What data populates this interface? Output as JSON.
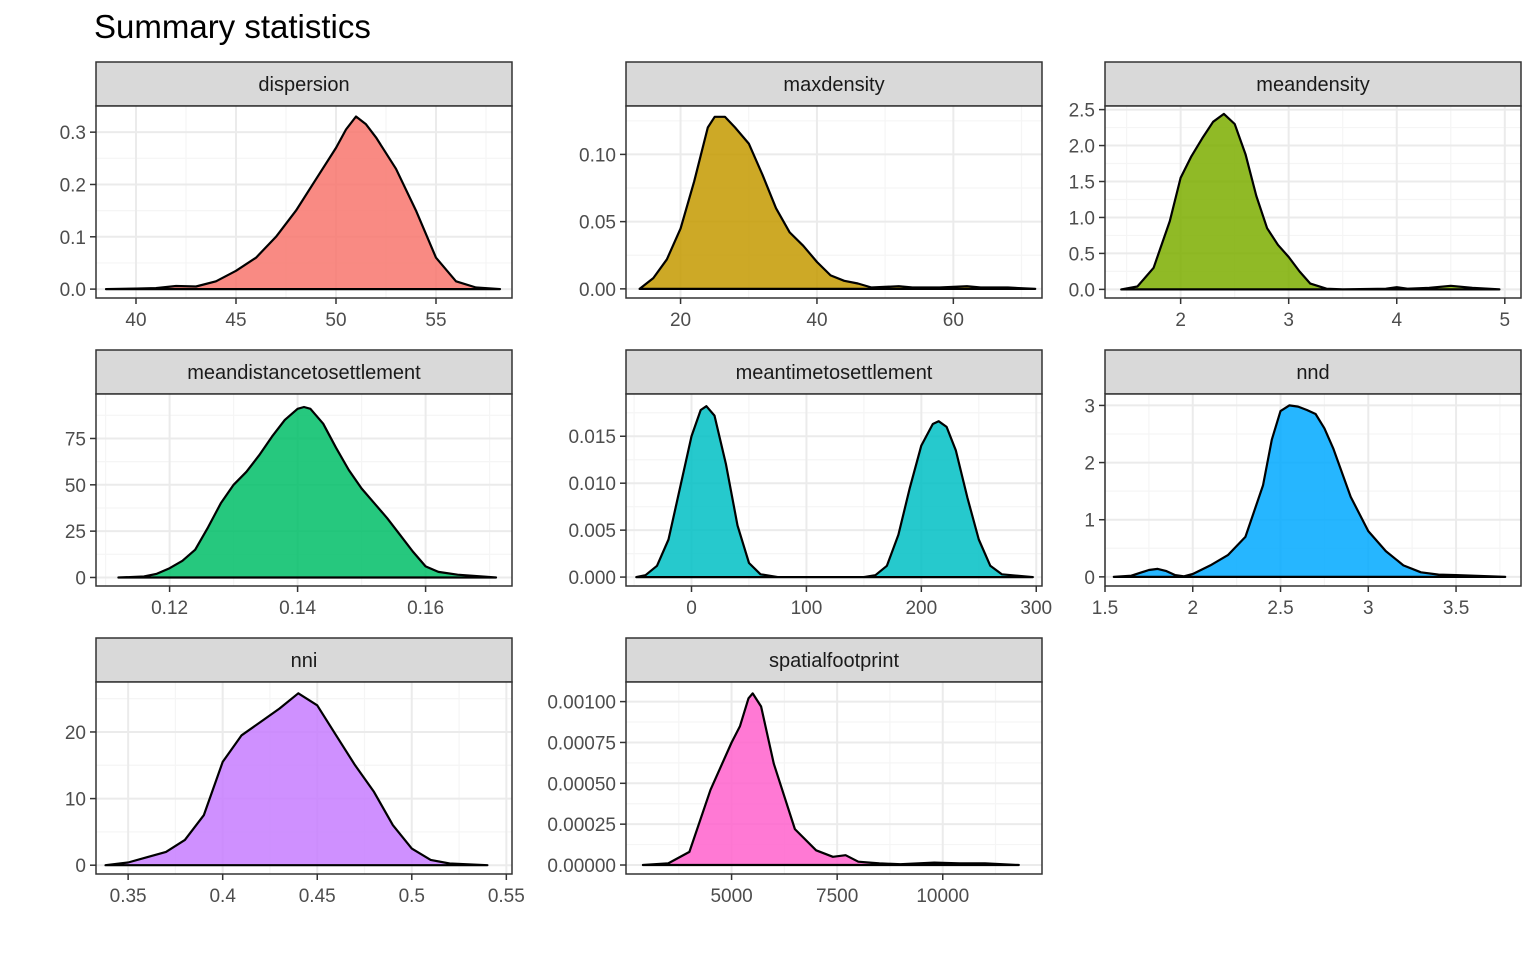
{
  "title": "Summary statistics",
  "colors": {
    "strip_fill": "#d9d9d9",
    "panel_border": "#333333",
    "grid_major": "#ebebeb",
    "grid_minor": "#f5f5f5",
    "axis_text": "#4d4d4d",
    "curve": "#000000"
  },
  "chart_data": [
    {
      "type": "area",
      "facet": "dispersion",
      "fill": "#F8766D",
      "xlim": [
        38,
        58.8
      ],
      "ylim": [
        -0.017,
        0.35
      ],
      "xticks": [
        40,
        45,
        50,
        55
      ],
      "yticks": [
        0,
        0.1,
        0.2,
        0.3
      ],
      "ytick_labels": [
        "0.0",
        "0.1",
        "0.2",
        "0.3"
      ],
      "points": [
        [
          38.5,
          0
        ],
        [
          40,
          0.001
        ],
        [
          41,
          0.002
        ],
        [
          42,
          0.006
        ],
        [
          43,
          0.005
        ],
        [
          44,
          0.015
        ],
        [
          45,
          0.035
        ],
        [
          46,
          0.06
        ],
        [
          47,
          0.1
        ],
        [
          48,
          0.15
        ],
        [
          49,
          0.21
        ],
        [
          50,
          0.27
        ],
        [
          50.5,
          0.305
        ],
        [
          51,
          0.33
        ],
        [
          51.5,
          0.315
        ],
        [
          52,
          0.29
        ],
        [
          53,
          0.23
        ],
        [
          54,
          0.15
        ],
        [
          55,
          0.06
        ],
        [
          56,
          0.015
        ],
        [
          57,
          0.003
        ],
        [
          58.2,
          0
        ]
      ]
    },
    {
      "type": "area",
      "facet": "maxdensity",
      "fill": "#C49A00",
      "xlim": [
        12,
        73
      ],
      "ylim": [
        -0.0068,
        0.136
      ],
      "xticks": [
        20,
        40,
        60
      ],
      "yticks": [
        0,
        0.05,
        0.1
      ],
      "ytick_labels": [
        "0.00",
        "0.05",
        "0.10"
      ],
      "points": [
        [
          14,
          0
        ],
        [
          16,
          0.008
        ],
        [
          18,
          0.022
        ],
        [
          20,
          0.045
        ],
        [
          22,
          0.08
        ],
        [
          24,
          0.12
        ],
        [
          25,
          0.128
        ],
        [
          26.5,
          0.128
        ],
        [
          28,
          0.12
        ],
        [
          30,
          0.108
        ],
        [
          32,
          0.085
        ],
        [
          34,
          0.06
        ],
        [
          36,
          0.042
        ],
        [
          38,
          0.032
        ],
        [
          40,
          0.02
        ],
        [
          42,
          0.01
        ],
        [
          44,
          0.006
        ],
        [
          46,
          0.004
        ],
        [
          48,
          0.001
        ],
        [
          52,
          0.002
        ],
        [
          54,
          0.001
        ],
        [
          58,
          0.001
        ],
        [
          62,
          0.002
        ],
        [
          64,
          0.001
        ],
        [
          68,
          0.001
        ],
        [
          72,
          0
        ]
      ]
    },
    {
      "type": "area",
      "facet": "meandensity",
      "fill": "#7CAE00",
      "xlim": [
        1.3,
        5.15
      ],
      "ylim": [
        -0.12,
        2.55
      ],
      "xticks": [
        2,
        3,
        4,
        5
      ],
      "yticks": [
        0,
        0.5,
        1,
        1.5,
        2,
        2.5
      ],
      "ytick_labels": [
        "0.0",
        "0.5",
        "1.0",
        "1.5",
        "2.0",
        "2.5"
      ],
      "points": [
        [
          1.45,
          0
        ],
        [
          1.6,
          0.04
        ],
        [
          1.75,
          0.3
        ],
        [
          1.9,
          0.95
        ],
        [
          2.0,
          1.55
        ],
        [
          2.1,
          1.85
        ],
        [
          2.2,
          2.1
        ],
        [
          2.3,
          2.33
        ],
        [
          2.4,
          2.44
        ],
        [
          2.5,
          2.3
        ],
        [
          2.6,
          1.88
        ],
        [
          2.7,
          1.3
        ],
        [
          2.8,
          0.85
        ],
        [
          2.9,
          0.62
        ],
        [
          3.0,
          0.45
        ],
        [
          3.1,
          0.25
        ],
        [
          3.2,
          0.08
        ],
        [
          3.35,
          0.01
        ],
        [
          3.5,
          0
        ],
        [
          3.9,
          0.01
        ],
        [
          4.0,
          0.03
        ],
        [
          4.1,
          0.01
        ],
        [
          4.3,
          0.02
        ],
        [
          4.5,
          0.05
        ],
        [
          4.7,
          0.02
        ],
        [
          4.95,
          0
        ]
      ]
    },
    {
      "type": "area",
      "facet": "meandistancetosettlement",
      "fill": "#00BE67",
      "xlim": [
        0.1085,
        0.1735
      ],
      "ylim": [
        -4.6,
        99
      ],
      "xticks": [
        0.12,
        0.14,
        0.16
      ],
      "yticks": [
        0,
        25,
        50,
        75
      ],
      "ytick_labels": [
        "0",
        "25",
        "50",
        "75"
      ],
      "points": [
        [
          0.112,
          0
        ],
        [
          0.116,
          0.5
        ],
        [
          0.118,
          2
        ],
        [
          0.12,
          5
        ],
        [
          0.122,
          9
        ],
        [
          0.124,
          15
        ],
        [
          0.126,
          27
        ],
        [
          0.128,
          40
        ],
        [
          0.13,
          50
        ],
        [
          0.132,
          57
        ],
        [
          0.134,
          66
        ],
        [
          0.136,
          76
        ],
        [
          0.138,
          85
        ],
        [
          0.14,
          91
        ],
        [
          0.141,
          92
        ],
        [
          0.142,
          91
        ],
        [
          0.144,
          83
        ],
        [
          0.146,
          70
        ],
        [
          0.148,
          58
        ],
        [
          0.15,
          48
        ],
        [
          0.152,
          40
        ],
        [
          0.154,
          32
        ],
        [
          0.156,
          23
        ],
        [
          0.158,
          14
        ],
        [
          0.16,
          6
        ],
        [
          0.162,
          3
        ],
        [
          0.165,
          1.5
        ],
        [
          0.171,
          0
        ]
      ]
    },
    {
      "type": "area",
      "facet": "meantimetosettlement",
      "fill": "#00BFC4",
      "xlim": [
        -57,
        305
      ],
      "ylim": [
        -0.00095,
        0.0195
      ],
      "xticks": [
        0,
        100,
        200,
        300
      ],
      "yticks": [
        0,
        0.005,
        0.01,
        0.015
      ],
      "ytick_labels": [
        "0.000",
        "0.005",
        "0.010",
        "0.015"
      ],
      "points": [
        [
          -48,
          0
        ],
        [
          -40,
          0.0002
        ],
        [
          -30,
          0.0012
        ],
        [
          -20,
          0.004
        ],
        [
          -10,
          0.0095
        ],
        [
          0,
          0.015
        ],
        [
          8,
          0.0178
        ],
        [
          13,
          0.0182
        ],
        [
          20,
          0.0172
        ],
        [
          30,
          0.012
        ],
        [
          40,
          0.0055
        ],
        [
          50,
          0.0015
        ],
        [
          60,
          0.0003
        ],
        [
          75,
          0
        ],
        [
          150,
          0
        ],
        [
          160,
          0.0002
        ],
        [
          170,
          0.0012
        ],
        [
          180,
          0.0045
        ],
        [
          190,
          0.0095
        ],
        [
          200,
          0.014
        ],
        [
          210,
          0.0163
        ],
        [
          215,
          0.0166
        ],
        [
          222,
          0.016
        ],
        [
          230,
          0.0135
        ],
        [
          240,
          0.0085
        ],
        [
          250,
          0.004
        ],
        [
          260,
          0.0012
        ],
        [
          270,
          0.0003
        ],
        [
          297,
          0
        ]
      ]
    },
    {
      "type": "area",
      "facet": "nnd",
      "fill": "#00A9FF",
      "xlim": [
        1.5,
        3.87
      ],
      "ylim": [
        -0.16,
        3.2
      ],
      "xticks": [
        1.5,
        2,
        2.5,
        3,
        3.5
      ],
      "yticks": [
        0,
        1,
        2,
        3
      ],
      "ytick_labels": [
        "0",
        "1",
        "2",
        "3"
      ],
      "points": [
        [
          1.55,
          0
        ],
        [
          1.65,
          0.02
        ],
        [
          1.75,
          0.12
        ],
        [
          1.8,
          0.14
        ],
        [
          1.85,
          0.1
        ],
        [
          1.9,
          0.03
        ],
        [
          1.95,
          0.01
        ],
        [
          2.0,
          0.05
        ],
        [
          2.1,
          0.2
        ],
        [
          2.2,
          0.38
        ],
        [
          2.3,
          0.7
        ],
        [
          2.4,
          1.6
        ],
        [
          2.45,
          2.4
        ],
        [
          2.5,
          2.9
        ],
        [
          2.55,
          3.0
        ],
        [
          2.6,
          2.98
        ],
        [
          2.65,
          2.92
        ],
        [
          2.7,
          2.85
        ],
        [
          2.75,
          2.6
        ],
        [
          2.8,
          2.25
        ],
        [
          2.9,
          1.4
        ],
        [
          3.0,
          0.8
        ],
        [
          3.1,
          0.45
        ],
        [
          3.2,
          0.2
        ],
        [
          3.3,
          0.08
        ],
        [
          3.4,
          0.04
        ],
        [
          3.5,
          0.03
        ],
        [
          3.6,
          0.02
        ],
        [
          3.78,
          0
        ]
      ]
    },
    {
      "type": "area",
      "facet": "nni",
      "fill": "#C77CFF",
      "xlim": [
        0.333,
        0.553
      ],
      "ylim": [
        -1.32,
        27.5
      ],
      "xticks": [
        0.35,
        0.4,
        0.45,
        0.5,
        0.55
      ],
      "yticks": [
        0,
        10,
        20
      ],
      "ytick_labels": [
        "0",
        "10",
        "20"
      ],
      "points": [
        [
          0.338,
          0
        ],
        [
          0.35,
          0.4
        ],
        [
          0.36,
          1.2
        ],
        [
          0.37,
          2
        ],
        [
          0.38,
          3.8
        ],
        [
          0.39,
          7.5
        ],
        [
          0.4,
          15.5
        ],
        [
          0.41,
          19.5
        ],
        [
          0.42,
          21.5
        ],
        [
          0.43,
          23.5
        ],
        [
          0.44,
          25.8
        ],
        [
          0.45,
          24
        ],
        [
          0.46,
          19.5
        ],
        [
          0.47,
          15
        ],
        [
          0.48,
          11
        ],
        [
          0.49,
          6
        ],
        [
          0.5,
          2.5
        ],
        [
          0.51,
          0.8
        ],
        [
          0.52,
          0.25
        ],
        [
          0.54,
          0
        ]
      ]
    },
    {
      "type": "area",
      "facet": "spatialfootprint",
      "fill": "#FF61CC",
      "xlim": [
        2500,
        12350
      ],
      "ylim": [
        -5.5e-05,
        0.00112
      ],
      "xticks": [
        5000,
        7500,
        10000
      ],
      "yticks": [
        0,
        0.00025,
        0.0005,
        0.00075,
        0.001
      ],
      "ytick_labels": [
        "0.00000",
        "0.00025",
        "0.00050",
        "0.00075",
        "0.00100"
      ],
      "points": [
        [
          2900,
          0
        ],
        [
          3500,
          1e-05
        ],
        [
          4000,
          8e-05
        ],
        [
          4500,
          0.00046
        ],
        [
          5000,
          0.00075
        ],
        [
          5200,
          0.00085
        ],
        [
          5400,
          0.00102
        ],
        [
          5500,
          0.00105
        ],
        [
          5700,
          0.00097
        ],
        [
          6000,
          0.00062
        ],
        [
          6500,
          0.00022
        ],
        [
          7000,
          9e-05
        ],
        [
          7400,
          5e-05
        ],
        [
          7700,
          6e-05
        ],
        [
          8000,
          2e-05
        ],
        [
          8500,
          1e-05
        ],
        [
          9000,
          5e-06
        ],
        [
          9800,
          1.5e-05
        ],
        [
          10400,
          1e-05
        ],
        [
          11000,
          1e-05
        ],
        [
          11800,
          0
        ]
      ]
    }
  ]
}
